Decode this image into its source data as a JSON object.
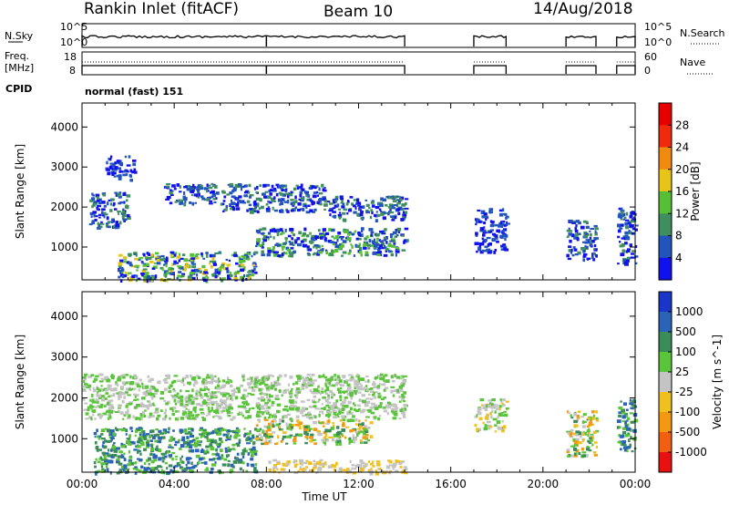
{
  "header": {
    "station": "Rankin Inlet (fitACF)",
    "beam": "Beam 10",
    "date": "14/Aug/2018"
  },
  "top_panel": {
    "left_label": "N.Sky",
    "left_ticks": [
      "10^5",
      "10^0"
    ],
    "right_ticks": [
      "10^5",
      "10^0"
    ],
    "right_label": "N.Search",
    "right_label_style": "dotted"
  },
  "freq_panel": {
    "left_label_line1": "Freq.",
    "left_label_line2": "[MHz]",
    "left_ticks": [
      "18",
      "8"
    ],
    "right_ticks": [
      "60",
      "0"
    ],
    "right_label": "Nave",
    "right_label_style": "dotted"
  },
  "cpid_panel": {
    "label": "CPID",
    "mode_text": "normal (fast) 151"
  },
  "chart_data": [
    {
      "type": "heatmap",
      "name": "power",
      "ylabel": "Slant Range [km]",
      "xlabel": "",
      "ylim": [
        180,
        4600
      ],
      "yticks": [
        1000,
        2000,
        3000,
        4000
      ],
      "colorbar": {
        "label": "Power [dB]",
        "ticks": [
          "4",
          "8",
          "12",
          "16",
          "20",
          "24",
          "28"
        ],
        "colors": [
          "#1111ee",
          "#2255bb",
          "#3e8e5e",
          "#55c036",
          "#e8c418",
          "#f38a10",
          "#f02a0a",
          "#e80000"
        ]
      },
      "x_data_segments_hours": [
        [
          0.0,
          14.0
        ],
        [
          17.0,
          18.4
        ],
        [
          21.0,
          22.3
        ],
        [
          23.2,
          24.0
        ]
      ],
      "echo_regions": [
        {
          "x": [
            0.3,
            2.0
          ],
          "y": [
            1500,
            2400
          ],
          "level": "8-16 dB"
        },
        {
          "x": [
            1.0,
            2.3
          ],
          "y": [
            2700,
            3300
          ],
          "level": "4-12 dB"
        },
        {
          "x": [
            3.5,
            5.8
          ],
          "y": [
            2100,
            2600
          ],
          "level": "8-20 dB"
        },
        {
          "x": [
            6.0,
            10.5
          ],
          "y": [
            1900,
            2600
          ],
          "level": "8-20 dB"
        },
        {
          "x": [
            10.5,
            14.0
          ],
          "y": [
            1700,
            2300
          ],
          "level": "8-20 dB"
        },
        {
          "x": [
            7.5,
            14.0
          ],
          "y": [
            800,
            1500
          ],
          "level": "12-28 dB"
        },
        {
          "x": [
            1.5,
            7.5
          ],
          "y": [
            180,
            900
          ],
          "level": "16-28+ dB"
        },
        {
          "x": [
            17.0,
            18.4
          ],
          "y": [
            900,
            2000
          ],
          "level": "4-16 dB"
        },
        {
          "x": [
            21.0,
            22.3
          ],
          "y": [
            700,
            1700
          ],
          "level": "8-28 dB"
        },
        {
          "x": [
            23.2,
            24.0
          ],
          "y": [
            600,
            2000
          ],
          "level": "8-28 dB"
        }
      ]
    },
    {
      "type": "heatmap",
      "name": "velocity",
      "ylabel": "Slant Range [km]",
      "xlabel": "Time UT",
      "ylim": [
        180,
        4600
      ],
      "yticks": [
        1000,
        2000,
        3000,
        4000
      ],
      "xticks": [
        "00:00",
        "04:00",
        "08:00",
        "12:00",
        "16:00",
        "20:00",
        "00:00"
      ],
      "colorbar": {
        "label": "Velocity [m s^-1]",
        "ticks": [
          "1000",
          "500",
          "100",
          "25",
          "-25",
          "-100",
          "-500",
          "-1000"
        ],
        "colors": [
          "#1a36c8",
          "#2a63b8",
          "#3a8c58",
          "#5ac43a",
          "#c4c4c4",
          "#f0c020",
          "#f39810",
          "#f06010",
          "#e81010"
        ]
      },
      "x_data_segments_hours": [
        [
          0.0,
          14.0
        ],
        [
          17.0,
          18.4
        ],
        [
          21.0,
          22.3
        ],
        [
          23.2,
          24.0
        ]
      ],
      "echo_regions": [
        {
          "x": [
            0.0,
            14.0
          ],
          "y": [
            1500,
            2600
          ],
          "level": "-25 to 25 m/s"
        },
        {
          "x": [
            0.5,
            7.5
          ],
          "y": [
            180,
            1300
          ],
          "level": "25 to 500 m/s"
        },
        {
          "x": [
            7.5,
            12.5
          ],
          "y": [
            900,
            1500
          ],
          "level": "-500 to 100 m/s"
        },
        {
          "x": [
            8.0,
            14.0
          ],
          "y": [
            180,
            500
          ],
          "level": "-100 to -25 m/s"
        },
        {
          "x": [
            17.0,
            18.4
          ],
          "y": [
            1200,
            2000
          ],
          "level": "-100 to 25 m/s"
        },
        {
          "x": [
            21.0,
            22.3
          ],
          "y": [
            600,
            1700
          ],
          "level": "-500 to 100 m/s"
        },
        {
          "x": [
            23.2,
            24.0
          ],
          "y": [
            700,
            2000
          ],
          "level": "25 to 500 m/s"
        }
      ]
    }
  ]
}
